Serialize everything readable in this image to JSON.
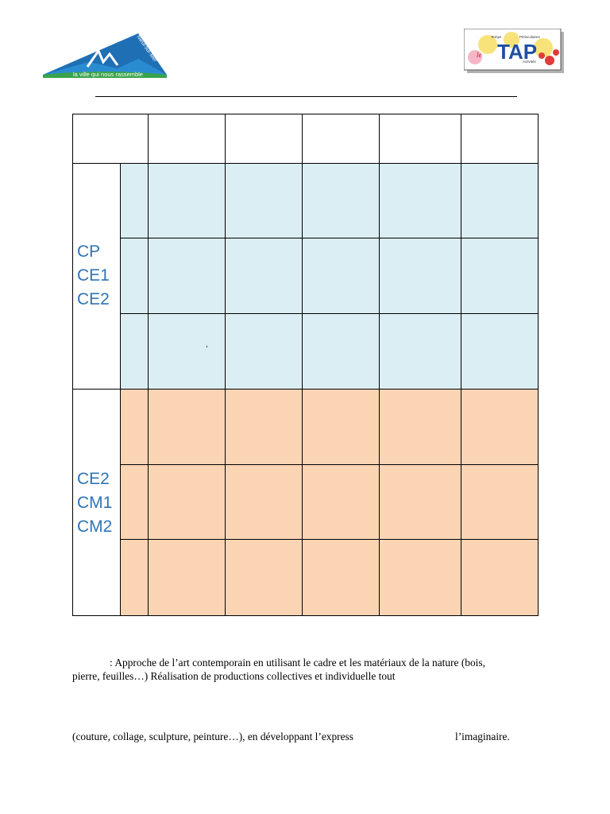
{
  "logo_left": {
    "vertical_text": "Nieul-sur-Mer",
    "tagline": "la ville qui nous rassemble"
  },
  "logo_right": {
    "title": "TAP",
    "words": [
      "Temps",
      "Périscolaires",
      "Activités"
    ],
    "prefix": "le"
  },
  "table": {
    "column_count": 5,
    "groups": [
      {
        "levels": [
          "CP",
          "CE1",
          "CE2"
        ],
        "color": "#dbeef3",
        "rows": 3
      },
      {
        "levels": [
          "CE2",
          "CM1",
          "CM2"
        ],
        "color": "#fbd4b4",
        "rows": 3
      }
    ],
    "stray_mark": "‘"
  },
  "text": {
    "line1": ": Approche de l’art contemporain en utilisant le cadre et les matériaux de la nature (bois,",
    "line2": "pierre, feuilles…) Réalisation de productions collectives et individuelle tout",
    "line3_left": "(couture, collage, sculpture, peinture…), en développant l’express",
    "line3_right": "l’imaginaire."
  }
}
